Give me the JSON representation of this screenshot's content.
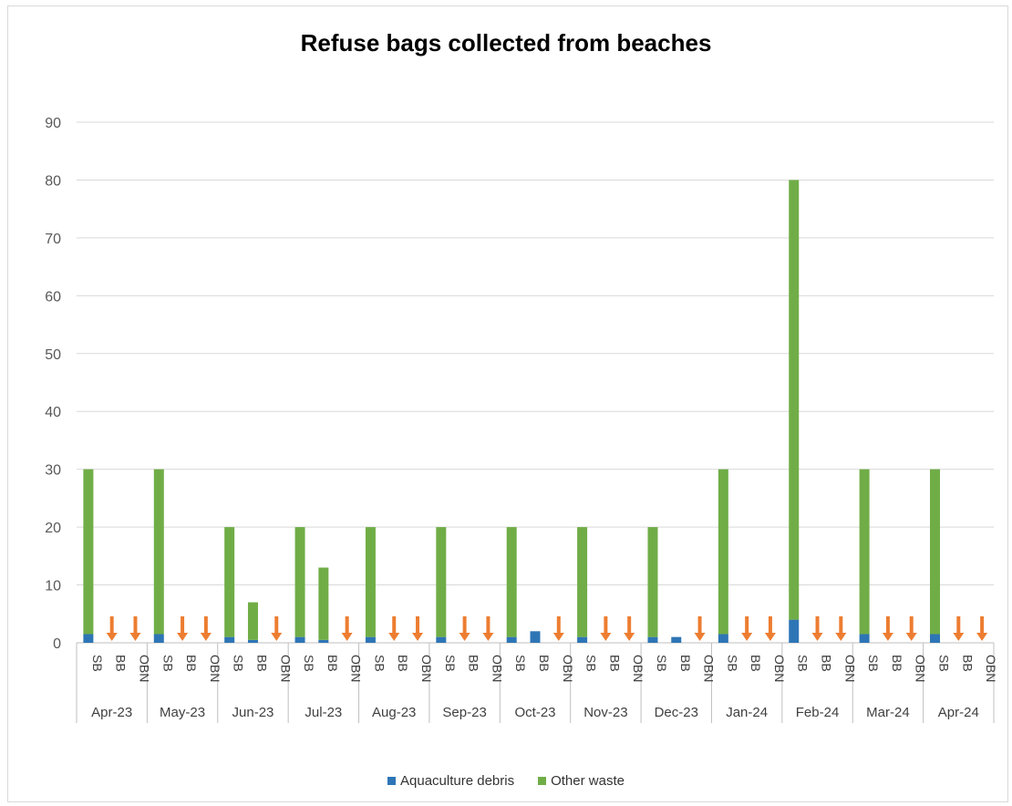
{
  "chart_data": {
    "type": "bar",
    "stacked": true,
    "title": "Refuse bags collected from beaches",
    "ylim": [
      0,
      90
    ],
    "yticks": [
      0,
      10,
      20,
      30,
      40,
      50,
      60,
      70,
      80,
      90
    ],
    "grid": true,
    "legend_position": "bottom",
    "site_labels": [
      "SB",
      "BB",
      "OBN"
    ],
    "months": [
      "Apr-23",
      "May-23",
      "Jun-23",
      "Jul-23",
      "Aug-23",
      "Sep-23",
      "Oct-23",
      "Nov-23",
      "Dec-23",
      "Jan-24",
      "Feb-24",
      "Mar-24",
      "Apr-24"
    ],
    "series": [
      {
        "name": "Aquaculture debris",
        "color": "#2e75b6",
        "values": [
          [
            1.5,
            0,
            0
          ],
          [
            1.5,
            0,
            0
          ],
          [
            1,
            0.5,
            0
          ],
          [
            1,
            0.5,
            0
          ],
          [
            1,
            0,
            0
          ],
          [
            1,
            0,
            0
          ],
          [
            1,
            2,
            0
          ],
          [
            1,
            0,
            0
          ],
          [
            1,
            1,
            0
          ],
          [
            1.5,
            0,
            0
          ],
          [
            4,
            0,
            0
          ],
          [
            1.5,
            0,
            0
          ],
          [
            1.5,
            0,
            0
          ]
        ]
      },
      {
        "name": "Other waste",
        "color": "#70ad47",
        "values": [
          [
            28.5,
            0,
            0
          ],
          [
            28.5,
            0,
            0
          ],
          [
            19,
            6.5,
            0
          ],
          [
            19,
            12.5,
            0
          ],
          [
            19,
            0,
            0
          ],
          [
            19,
            0,
            0
          ],
          [
            19,
            0,
            0
          ],
          [
            19,
            0,
            0
          ],
          [
            19,
            0,
            0
          ],
          [
            28.5,
            0,
            0
          ],
          [
            76,
            0,
            0
          ],
          [
            28.5,
            0,
            0
          ],
          [
            28.5,
            0,
            0
          ]
        ]
      }
    ],
    "annotations": {
      "marker": "down-arrow",
      "color": "#ed7d31",
      "description": "no collection",
      "positions": [
        [
          false,
          true,
          true
        ],
        [
          false,
          true,
          true
        ],
        [
          false,
          false,
          true
        ],
        [
          false,
          false,
          true
        ],
        [
          false,
          true,
          true
        ],
        [
          false,
          true,
          true
        ],
        [
          false,
          false,
          true
        ],
        [
          false,
          true,
          true
        ],
        [
          false,
          false,
          true
        ],
        [
          false,
          true,
          true
        ],
        [
          false,
          true,
          true
        ],
        [
          false,
          true,
          true
        ],
        [
          false,
          true,
          true
        ]
      ]
    }
  }
}
